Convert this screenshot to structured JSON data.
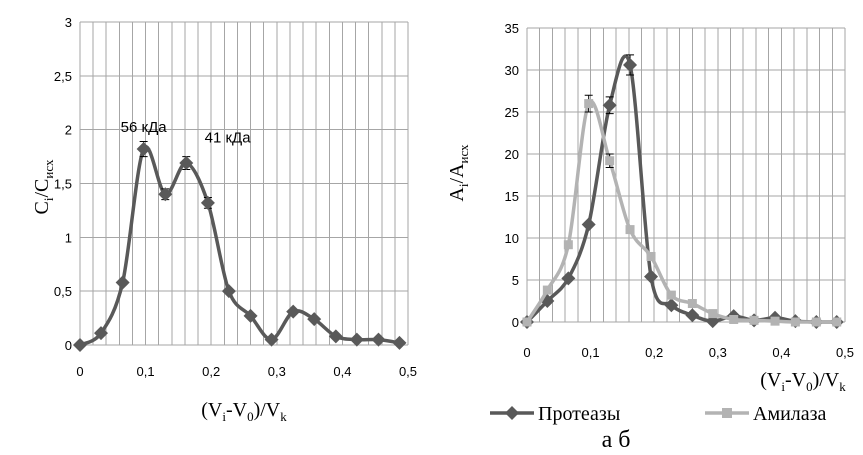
{
  "chart_data": [
    {
      "type": "line",
      "panel": "а",
      "x": [
        0,
        0.032,
        0.065,
        0.097,
        0.13,
        0.162,
        0.195,
        0.227,
        0.26,
        0.292,
        0.325,
        0.357,
        0.39,
        0.422,
        0.455,
        0.487
      ],
      "series": [
        {
          "name": "",
          "color": "#595959",
          "marker": "diamond",
          "values": [
            0,
            0.11,
            0.58,
            1.82,
            1.4,
            1.69,
            1.32,
            0.5,
            0.27,
            0.05,
            0.31,
            0.24,
            0.08,
            0.05,
            0.05,
            0.02
          ],
          "errors": [
            0,
            0,
            0,
            0.07,
            0.05,
            0.06,
            0.05,
            0,
            0,
            0,
            0,
            0,
            0,
            0,
            0,
            0
          ]
        }
      ],
      "xlabel": "(Vi-V0)/Vk",
      "ylabel": "Ci/Cисх",
      "xlim": [
        0,
        0.5
      ],
      "ylim": [
        0,
        3
      ],
      "xticks": [
        "0",
        "0,1",
        "0,2",
        "0,3",
        "0,4",
        "0,5"
      ],
      "yticks": [
        "0",
        "0,5",
        "1",
        "1,5",
        "2",
        "2,5",
        "3"
      ],
      "annotations": [
        {
          "text": "56 кДа",
          "x": 0.097,
          "y": 1.98
        },
        {
          "text": "41 кДа",
          "x": 0.19,
          "y": 1.88
        }
      ],
      "grid": true
    },
    {
      "type": "line",
      "panel": "б",
      "x": [
        0,
        0.032,
        0.065,
        0.097,
        0.13,
        0.162,
        0.195,
        0.227,
        0.26,
        0.292,
        0.325,
        0.357,
        0.39,
        0.422,
        0.455,
        0.487
      ],
      "series": [
        {
          "name": "Протеазы",
          "color": "#595959",
          "marker": "diamond",
          "values": [
            0,
            2.5,
            5.2,
            11.6,
            25.8,
            30.6,
            5.4,
            2.0,
            0.8,
            0.1,
            0.7,
            0.2,
            0.5,
            0.1,
            0,
            0
          ],
          "errors": [
            0,
            0,
            0,
            0,
            1.0,
            1.2,
            0,
            0,
            0,
            0,
            0,
            0,
            0,
            0,
            0,
            0
          ]
        },
        {
          "name": "Амилаза",
          "color": "#b3b3b3",
          "marker": "square",
          "values": [
            0,
            3.8,
            9.2,
            26.0,
            19.2,
            11.0,
            7.8,
            3.2,
            2.2,
            1.0,
            0.3,
            0.2,
            0.1,
            0,
            0,
            0
          ],
          "errors": [
            0,
            0,
            0,
            1.0,
            0.8,
            0,
            0,
            0,
            0,
            0,
            0,
            0,
            0,
            0,
            0,
            0
          ]
        }
      ],
      "xlabel": "(Vi-V0)/Vk",
      "ylabel": "Ai/Aисх",
      "xlim": [
        0,
        0.5
      ],
      "ylim": [
        0,
        35
      ],
      "xticks": [
        "0",
        "0,1",
        "0,2",
        "0,3",
        "0,4",
        "0,5"
      ],
      "yticks": [
        "0",
        "5",
        "10",
        "15",
        "20",
        "25",
        "30",
        "35"
      ],
      "grid": true,
      "legend": "bottom"
    }
  ],
  "label_a": {
    "base": "C",
    "sub1": "i",
    "slash": "/C",
    "sub2": "исх"
  },
  "label_b": {
    "base": "A",
    "sub1": "i",
    "slash": "/A",
    "sub2": "исх"
  },
  "xlabel_parts": {
    "p1": "(V",
    "s1": "i",
    "p2": "-V",
    "s2": "0",
    "p3": ")/V",
    "s3": "k"
  },
  "panel_caption": "а б"
}
